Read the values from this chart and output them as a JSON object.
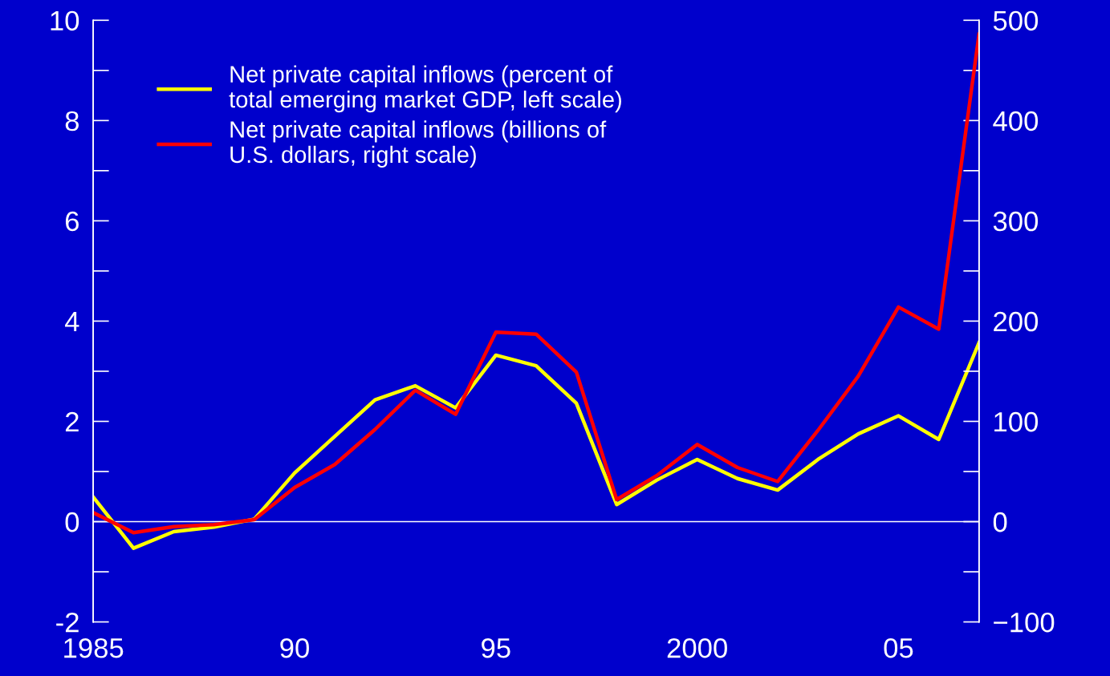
{
  "chart_data": {
    "type": "line",
    "x": [
      1985,
      1986,
      1987,
      1988,
      1989,
      1990,
      1991,
      1992,
      1993,
      1994,
      1995,
      1996,
      1997,
      1998,
      1999,
      2000,
      2001,
      2002,
      2003,
      2004,
      2005,
      2006,
      2007
    ],
    "series": [
      {
        "name": "Net private capital inflows (percent of\ntotal emerging market GDP, left scale)",
        "color": "#ffff00",
        "values": [
          0.49,
          -0.53,
          -0.2,
          -0.11,
          0.05,
          0.97,
          1.7,
          2.43,
          2.71,
          2.27,
          3.32,
          3.11,
          2.36,
          0.34,
          0.83,
          1.24,
          0.86,
          0.63,
          1.24,
          1.75,
          2.11,
          1.64,
          3.57
        ]
      },
      {
        "name": "Net private capital inflows (billions of\nU.S. dollars, right scale)",
        "color": "#ff0000",
        "axis": "y2",
        "values": [
          9,
          -11,
          -5,
          -3,
          2,
          34,
          57,
          92,
          131,
          107,
          189,
          187,
          149,
          22,
          46,
          77,
          54,
          40,
          91,
          145,
          214,
          192,
          486
        ]
      }
    ],
    "xlim": [
      1985,
      2007
    ],
    "xticks": [
      {
        "value": 1985,
        "label": "1985"
      },
      {
        "value": 1990,
        "label": "90"
      },
      {
        "value": 1995,
        "label": "95"
      },
      {
        "value": 2000,
        "label": "2000"
      },
      {
        "value": 2005,
        "label": "05"
      }
    ],
    "ylim": [
      -2,
      10
    ],
    "yticks": [
      -2,
      0,
      2,
      4,
      6,
      8,
      10
    ],
    "y2lim": [
      -100,
      500
    ],
    "y2ticks": [
      {
        "value": -100,
        "label": "−100"
      },
      0,
      100,
      200,
      300,
      400,
      500
    ],
    "ref_lines": [
      {
        "axis": "y",
        "value": 0,
        "color": "#ffffff"
      }
    ],
    "legend": "top left",
    "grid": false
  }
}
